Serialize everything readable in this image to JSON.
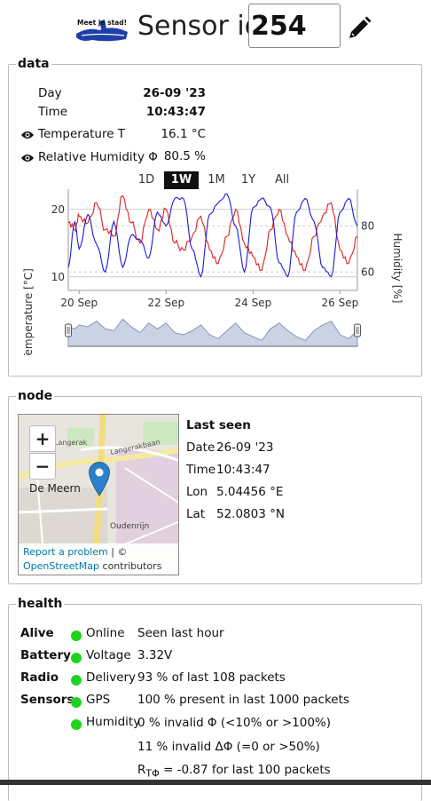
{
  "header": {
    "logo_text": "Meet je stad!",
    "sensor_label": "Sensor id:",
    "sensor_id": "254",
    "edit_icon": "pencil-icon"
  },
  "data": {
    "legend": "data",
    "day_label": "Day",
    "day_value": "26-09 '23",
    "time_label": "Time",
    "time_value": "10:43:47",
    "temp_label": "Temperature T",
    "temp_value": "16.1 °C",
    "hum_label": "Relative Humidity Φ",
    "hum_value": "80.5 %",
    "eye_icon": "eye-icon",
    "ranges": [
      "1D",
      "1W",
      "1M",
      "1Y",
      "All"
    ],
    "active_range": "1W"
  },
  "chart_data": {
    "type": "line",
    "ylabel_left": "Temperature [°C]",
    "ylabel_right": "Humidity [%]",
    "x_ticks": [
      "20 Sep",
      "22 Sep",
      "24 Sep",
      "26 Sep"
    ],
    "y_left_ticks": [
      10,
      20
    ],
    "y_right_ticks": [
      60,
      80
    ],
    "x_domain": [
      19.75,
      26.4
    ],
    "ylim_left": [
      8,
      23
    ],
    "ylim_right": [
      52,
      96
    ],
    "colors": {
      "temperature": "#e02020",
      "humidity": "#1a1ad8"
    },
    "series": [
      {
        "axis": "left",
        "x": [
          19.75,
          19.9,
          20.0,
          20.2,
          20.4,
          20.6,
          20.8,
          21.0,
          21.2,
          21.4,
          21.6,
          21.8,
          22.0,
          22.2,
          22.4,
          22.6,
          22.8,
          23.0,
          23.2,
          23.4,
          23.6,
          23.8,
          24.0,
          24.2,
          24.4,
          24.6,
          24.8,
          25.0,
          25.2,
          25.4,
          25.6,
          25.8,
          26.0,
          26.2,
          26.4
        ],
        "values": [
          18,
          17,
          19,
          18,
          21,
          17,
          16,
          22,
          18,
          15,
          20,
          17,
          20,
          15,
          14,
          16,
          19,
          14,
          12,
          16,
          20,
          15,
          13,
          11,
          17,
          20,
          16,
          13,
          11,
          16,
          19,
          21,
          14,
          12,
          16
        ]
      },
      {
        "axis": "right",
        "x": [
          19.75,
          19.9,
          20.0,
          20.2,
          20.4,
          20.6,
          20.8,
          21.0,
          21.2,
          21.4,
          21.6,
          21.8,
          22.0,
          22.2,
          22.4,
          22.6,
          22.8,
          23.0,
          23.2,
          23.4,
          23.6,
          23.8,
          24.0,
          24.2,
          24.4,
          24.6,
          24.8,
          25.0,
          25.2,
          25.4,
          25.6,
          25.8,
          26.0,
          26.2,
          26.4
        ],
        "values": [
          62,
          82,
          70,
          85,
          72,
          60,
          82,
          62,
          76,
          74,
          66,
          86,
          80,
          92,
          92,
          70,
          58,
          85,
          90,
          94,
          80,
          60,
          88,
          92,
          88,
          64,
          58,
          86,
          92,
          82,
          62,
          58,
          86,
          92,
          80
        ]
      }
    ]
  },
  "node": {
    "legend": "node",
    "last_seen_title": "Last seen",
    "date_label": "Date",
    "date_value": "26-09 '23",
    "time_label": "Time",
    "time_value": "10:43:47",
    "lon_label": "Lon",
    "lon_value": "5.04456 °E",
    "lat_label": "Lat",
    "lat_value": "52.0803 °N",
    "zoom_in": "+",
    "zoom_out": "−",
    "map_labels": [
      "De Meern",
      "Oudenrijn",
      "Langerakbaan",
      "Langerak"
    ],
    "report": "Report a problem",
    "attr_sep": " | © ",
    "osm": "OpenStreetMap",
    "contributors": " contributors"
  },
  "health": {
    "legend": "health",
    "status_color": "#1fd41f",
    "rows": [
      {
        "cat": "Alive",
        "metric": "Online",
        "detail": "Seen last hour"
      },
      {
        "cat": "Battery",
        "metric": "Voltage",
        "detail": "3.32V"
      },
      {
        "cat": "Radio",
        "metric": "Delivery",
        "detail": "93 % of last 108 packets"
      },
      {
        "cat": "Sensors",
        "metric": "GPS",
        "detail": "100 % present in last 1000 packets"
      },
      {
        "cat": "",
        "metric": "Humidity",
        "detail": "0 % invalid Φ (<10% or >100%)"
      },
      {
        "cat": "",
        "metric": "",
        "detail": "11 % invalid ΔΦ (=0 or >50%)"
      }
    ],
    "r_prefix": "R",
    "r_sub": "TΦ",
    "r_rest": " = -0.87 for last 100 packets"
  }
}
